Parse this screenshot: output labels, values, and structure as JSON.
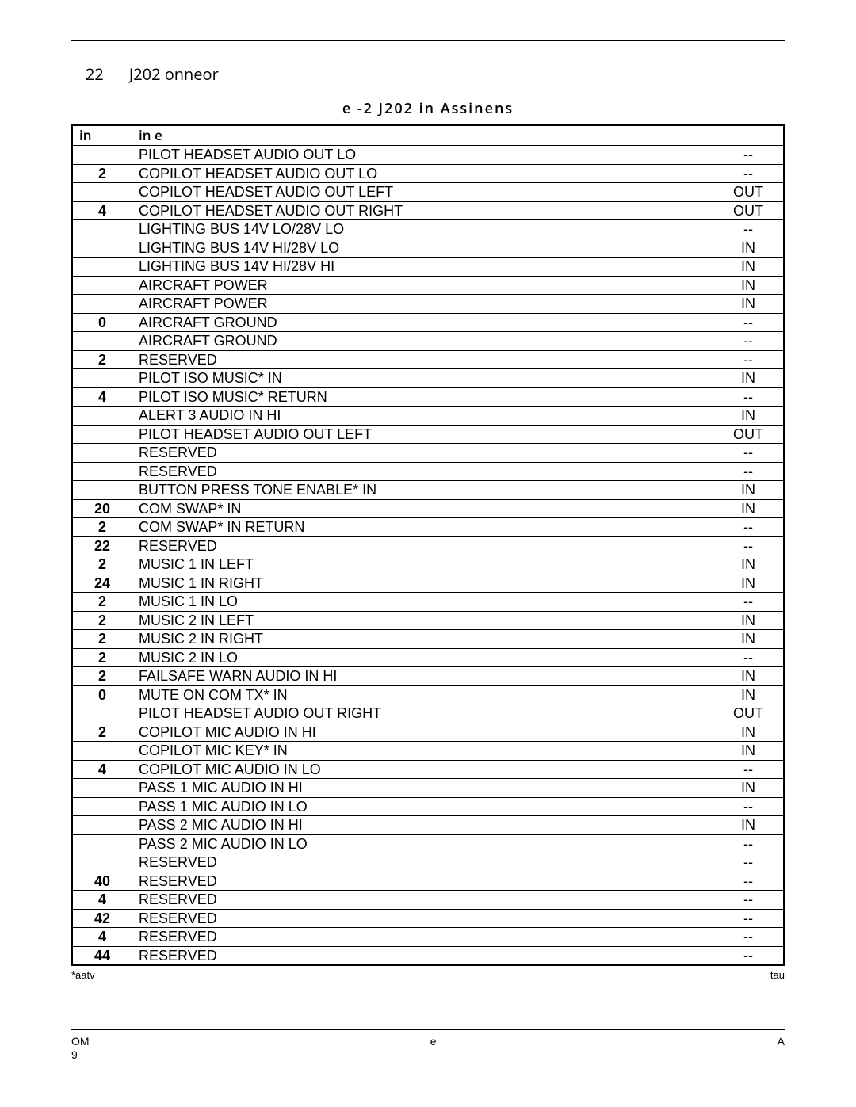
{
  "section": {
    "number": "22",
    "title": "J202 onneor"
  },
  "table": {
    "caption": "e -2 J202 in Assinens",
    "headers": {
      "pin": "in",
      "name": "in e",
      "io": ""
    },
    "rows": [
      {
        "pin": "",
        "name": "PILOT HEADSET AUDIO OUT LO",
        "io": "--"
      },
      {
        "pin": "2",
        "name": "COPILOT HEADSET AUDIO OUT LO",
        "io": "--"
      },
      {
        "pin": "",
        "name": "COPILOT HEADSET AUDIO OUT LEFT",
        "io": "OUT"
      },
      {
        "pin": "4",
        "name": "COPILOT HEADSET AUDIO OUT RIGHT",
        "io": "OUT"
      },
      {
        "pin": "",
        "name": "LIGHTING BUS 14V LO/28V LO",
        "io": "--"
      },
      {
        "pin": "",
        "name": "LIGHTING BUS 14V HI/28V LO",
        "io": "IN"
      },
      {
        "pin": "",
        "name": "LIGHTING BUS 14V HI/28V HI",
        "io": "IN"
      },
      {
        "pin": "",
        "name": "AIRCRAFT POWER",
        "io": "IN"
      },
      {
        "pin": "",
        "name": "AIRCRAFT POWER",
        "io": "IN"
      },
      {
        "pin": "0",
        "name": "AIRCRAFT GROUND",
        "io": "--"
      },
      {
        "pin": "",
        "name": "AIRCRAFT GROUND",
        "io": "--"
      },
      {
        "pin": "2",
        "name": "RESERVED",
        "io": "--"
      },
      {
        "pin": "",
        "name": "PILOT ISO MUSIC* IN",
        "io": "IN"
      },
      {
        "pin": "4",
        "name": "PILOT ISO MUSIC* RETURN",
        "io": "--"
      },
      {
        "pin": "",
        "name": "ALERT 3 AUDIO IN HI",
        "io": "IN"
      },
      {
        "pin": "",
        "name": "PILOT HEADSET AUDIO OUT LEFT",
        "io": "OUT"
      },
      {
        "pin": "",
        "name": "RESERVED",
        "io": "--"
      },
      {
        "pin": "",
        "name": "RESERVED",
        "io": "--"
      },
      {
        "pin": "",
        "name": "BUTTON PRESS TONE ENABLE* IN",
        "io": "IN"
      },
      {
        "pin": "20",
        "name": "COM SWAP* IN",
        "io": "IN"
      },
      {
        "pin": "2",
        "name": "COM SWAP* IN RETURN",
        "io": "--"
      },
      {
        "pin": "22",
        "name": "RESERVED",
        "io": "--"
      },
      {
        "pin": "2",
        "name": "MUSIC 1 IN LEFT",
        "io": "IN"
      },
      {
        "pin": "24",
        "name": "MUSIC 1 IN RIGHT",
        "io": "IN"
      },
      {
        "pin": "2",
        "name": "MUSIC 1 IN LO",
        "io": "--"
      },
      {
        "pin": "2",
        "name": "MUSIC 2 IN LEFT",
        "io": "IN"
      },
      {
        "pin": "2",
        "name": "MUSIC 2 IN RIGHT",
        "io": "IN"
      },
      {
        "pin": "2",
        "name": "MUSIC 2 IN LO",
        "io": "--"
      },
      {
        "pin": "2",
        "name": "FAILSAFE WARN AUDIO IN HI",
        "io": "IN"
      },
      {
        "pin": "0",
        "name": "MUTE ON COM TX* IN",
        "io": "IN"
      },
      {
        "pin": "",
        "name": "PILOT HEADSET AUDIO OUT RIGHT",
        "io": "OUT"
      },
      {
        "pin": "2",
        "name": "COPILOT MIC AUDIO IN HI",
        "io": "IN"
      },
      {
        "pin": "",
        "name": "COPILOT MIC KEY* IN",
        "io": "IN"
      },
      {
        "pin": "4",
        "name": "COPILOT MIC AUDIO IN LO",
        "io": "--"
      },
      {
        "pin": "",
        "name": "PASS 1 MIC AUDIO IN HI",
        "io": "IN"
      },
      {
        "pin": "",
        "name": "PASS 1 MIC AUDIO IN LO",
        "io": "--"
      },
      {
        "pin": "",
        "name": "PASS 2 MIC AUDIO IN HI",
        "io": "IN"
      },
      {
        "pin": "",
        "name": "PASS 2 MIC AUDIO IN LO",
        "io": "--"
      },
      {
        "pin": "",
        "name": "RESERVED",
        "io": "--"
      },
      {
        "pin": "40",
        "name": "RESERVED",
        "io": "--"
      },
      {
        "pin": "4",
        "name": "RESERVED",
        "io": "--"
      },
      {
        "pin": "42",
        "name": "RESERVED",
        "io": "--"
      },
      {
        "pin": "4",
        "name": "RESERVED",
        "io": "--"
      },
      {
        "pin": "44",
        "name": "RESERVED",
        "io": "--"
      }
    ]
  },
  "footnote": {
    "left": "*aatv",
    "right": "tau"
  },
  "footer": {
    "left_top": "OM",
    "left_bot": "9",
    "center": "e",
    "right": "A"
  }
}
